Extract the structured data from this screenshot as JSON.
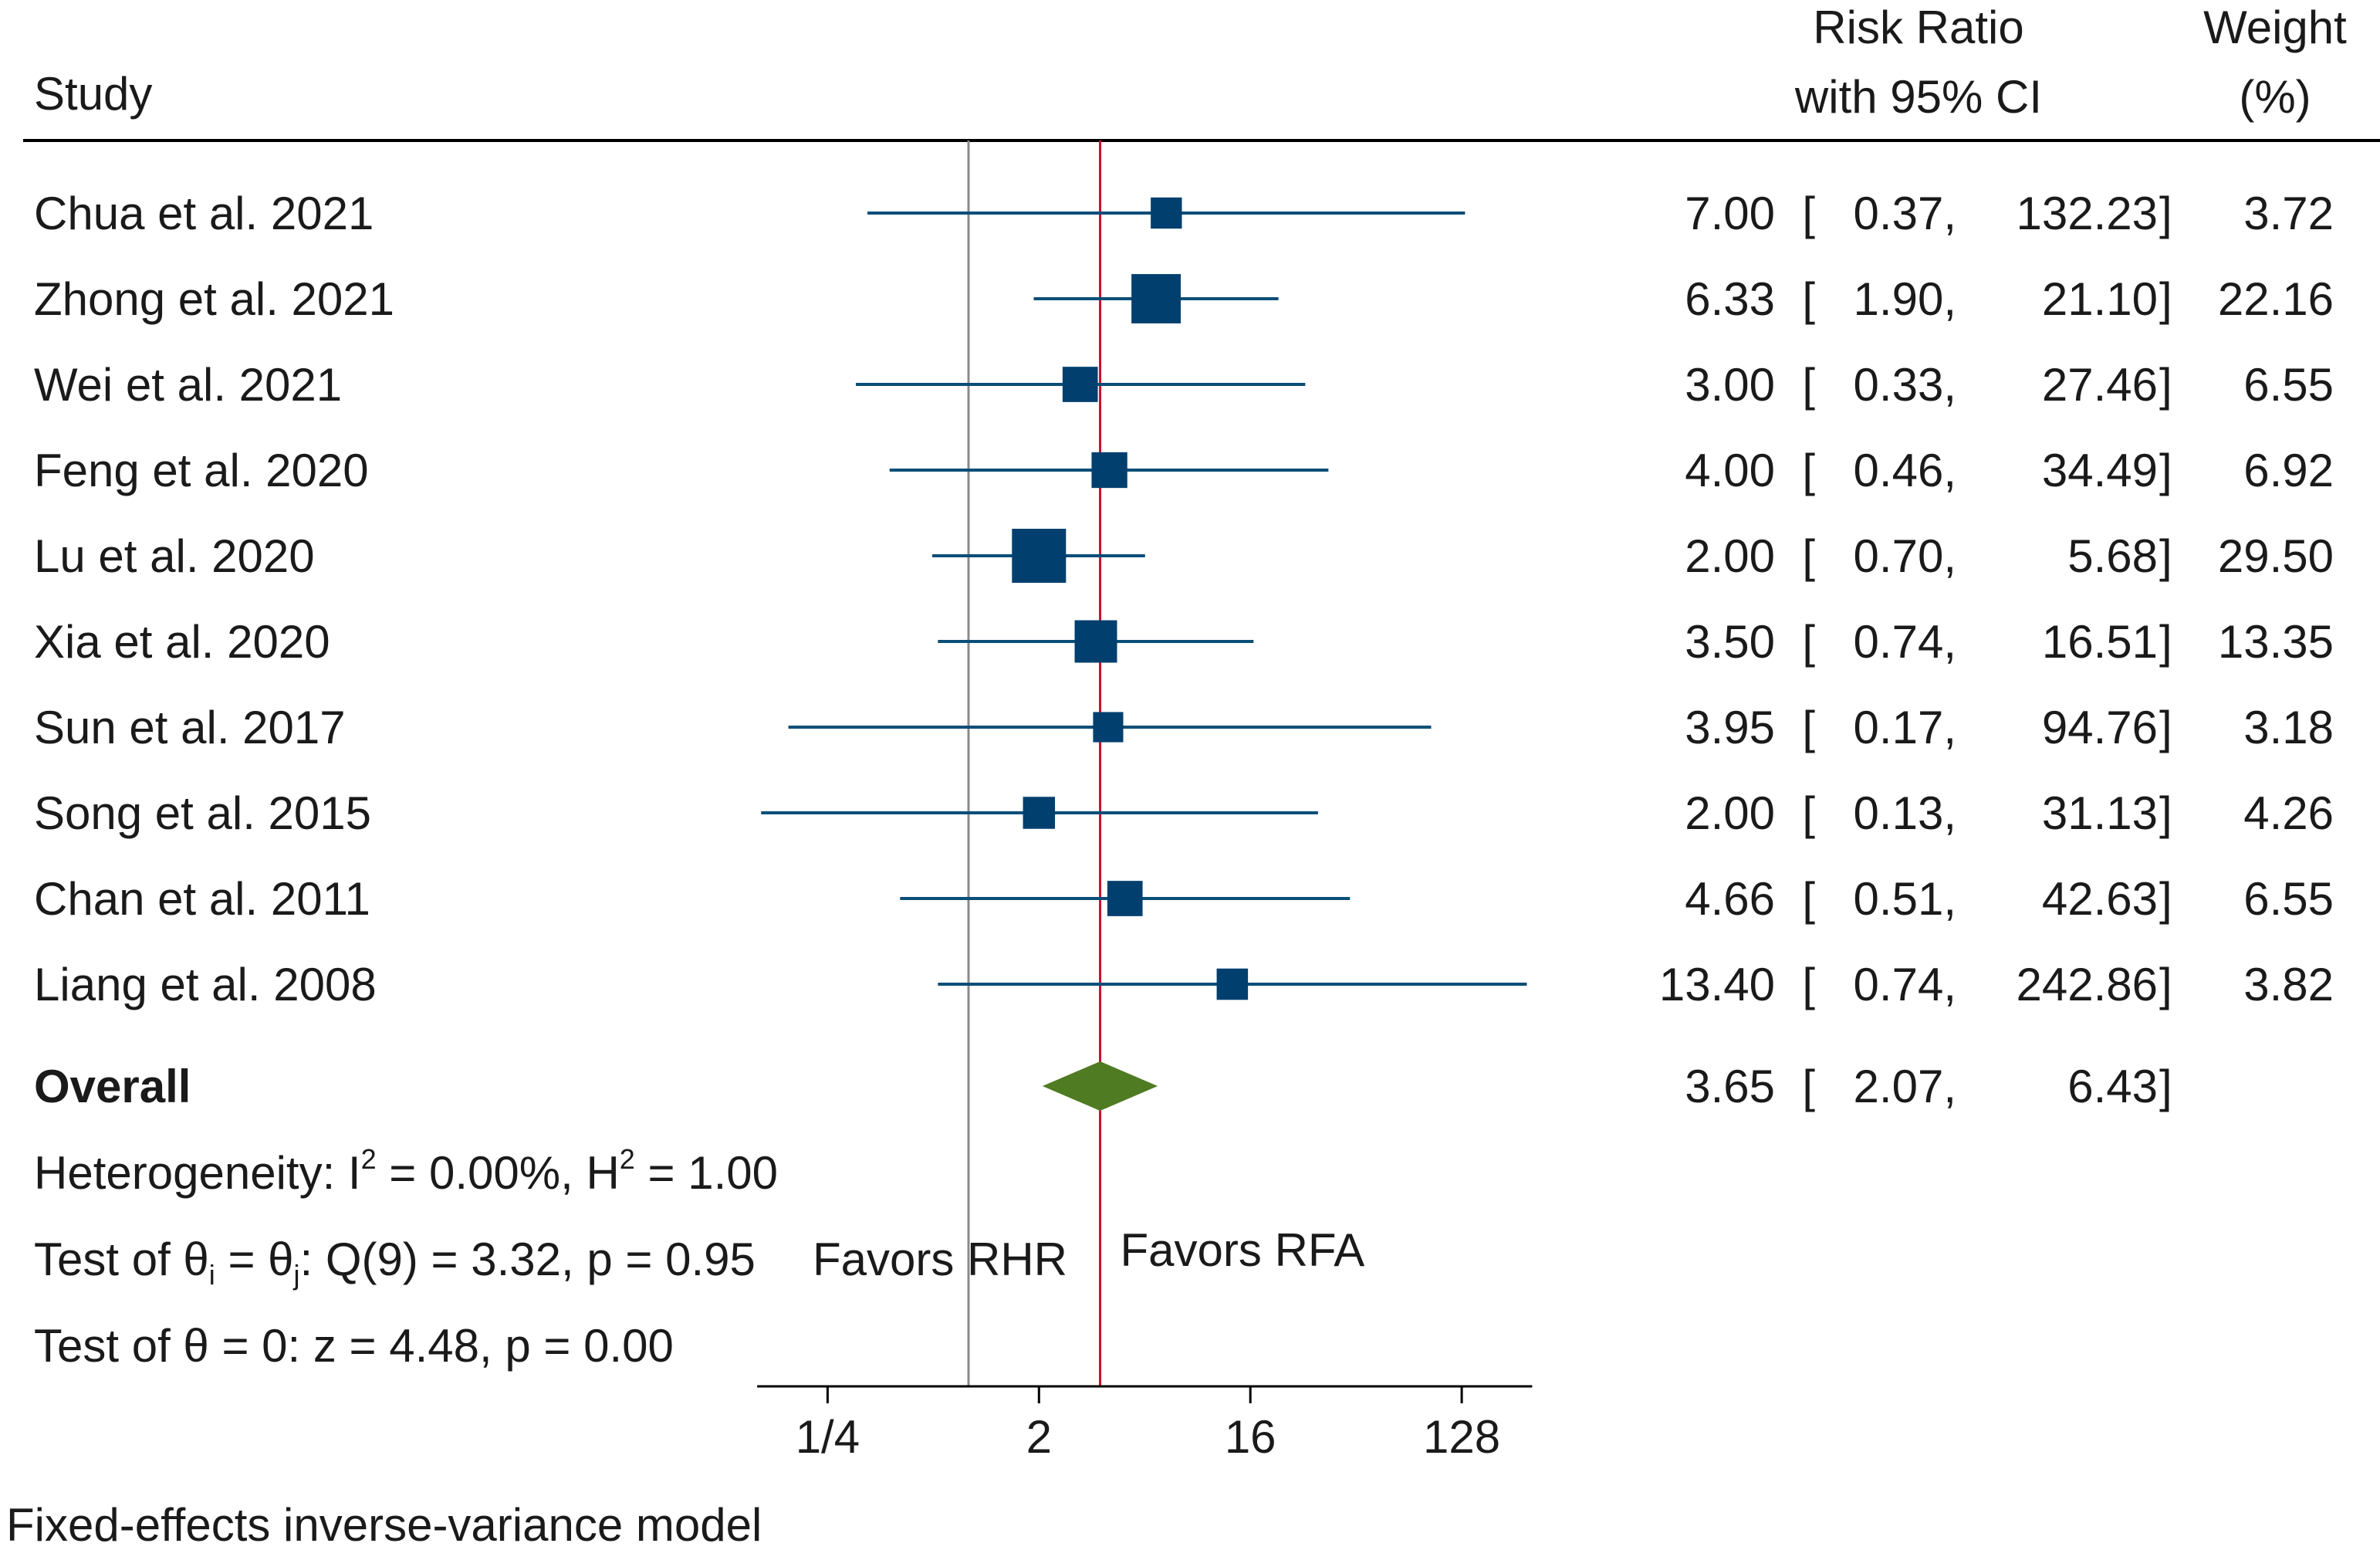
{
  "chart_data": {
    "type": "forest",
    "scale": "log2",
    "header": {
      "study": "Study",
      "rr_line1": "Risk Ratio",
      "rr_line2": "with 95% CI",
      "weight_line1": "Weight",
      "weight_line2": "(%)"
    },
    "studies": [
      {
        "name": "Chua et al. 2021",
        "rr": 7.0,
        "lo": 0.37,
        "hi": 132.23,
        "weight": 3.72
      },
      {
        "name": "Zhong et al. 2021",
        "rr": 6.33,
        "lo": 1.9,
        "hi": 21.1,
        "weight": 22.16
      },
      {
        "name": "Wei et al. 2021",
        "rr": 3.0,
        "lo": 0.33,
        "hi": 27.46,
        "weight": 6.55
      },
      {
        "name": "Feng et al. 2020",
        "rr": 4.0,
        "lo": 0.46,
        "hi": 34.49,
        "weight": 6.92
      },
      {
        "name": "Lu et al. 2020",
        "rr": 2.0,
        "lo": 0.7,
        "hi": 5.68,
        "weight": 29.5
      },
      {
        "name": "Xia et al. 2020",
        "rr": 3.5,
        "lo": 0.74,
        "hi": 16.51,
        "weight": 13.35
      },
      {
        "name": "Sun et al. 2017",
        "rr": 3.95,
        "lo": 0.17,
        "hi": 94.76,
        "weight": 3.18
      },
      {
        "name": "Song et al. 2015",
        "rr": 2.0,
        "lo": 0.13,
        "hi": 31.13,
        "weight": 4.26
      },
      {
        "name": "Chan et al. 2011",
        "rr": 4.66,
        "lo": 0.51,
        "hi": 42.63,
        "weight": 6.55
      },
      {
        "name": "Liang et al. 2008",
        "rr": 13.4,
        "lo": 0.74,
        "hi": 242.86,
        "weight": 3.82
      }
    ],
    "overall": {
      "label": "Overall",
      "rr": 3.65,
      "lo": 2.07,
      "hi": 6.43
    },
    "stats": {
      "heterogeneity": "Heterogeneity: I² = 0.00%, H² = 1.00",
      "test_q": "Test of θi = θj: Q(9) = 3.32, p = 0.95",
      "test_theta": "Test of θ = 0: z = 4.48, p = 0.00"
    },
    "x_ticks": [
      {
        "value": 0.25,
        "label": "1/4"
      },
      {
        "value": 2,
        "label": "2"
      },
      {
        "value": 16,
        "label": "16"
      },
      {
        "value": 128,
        "label": "128"
      }
    ],
    "xlim": [
      0.125,
      256
    ],
    "null_line": 1,
    "favors_left": "Favors RHR",
    "favors_right": "Favors RFA",
    "footnote": "Fixed-effects inverse-variance model",
    "colors": {
      "study_marker": "#003f6e",
      "ci_line": "#0a4e78",
      "overall_diamond": "#4f7b23",
      "null_line": "#8a8a8a",
      "overall_line": "#c8102e",
      "text": "#1a1a1a"
    }
  }
}
